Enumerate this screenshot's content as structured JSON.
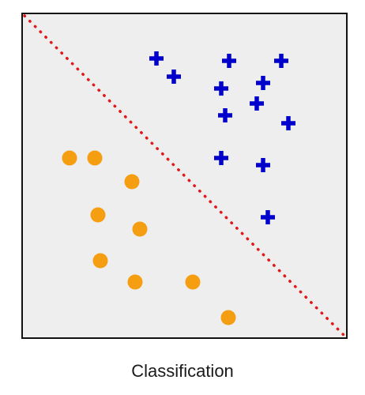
{
  "caption": "Classification",
  "colors": {
    "panel_background": "#eeeeee",
    "panel_border": "#111111",
    "class_a": "#0000cc",
    "class_b": "#f59e12",
    "boundary": "#e0191a"
  },
  "classes": [
    {
      "id": "class_a",
      "marker": "plus-icon"
    },
    {
      "id": "class_b",
      "marker": "circle"
    }
  ],
  "decision_boundary": {
    "style": "dotted",
    "from": "top-left",
    "to": "bottom-right"
  }
}
